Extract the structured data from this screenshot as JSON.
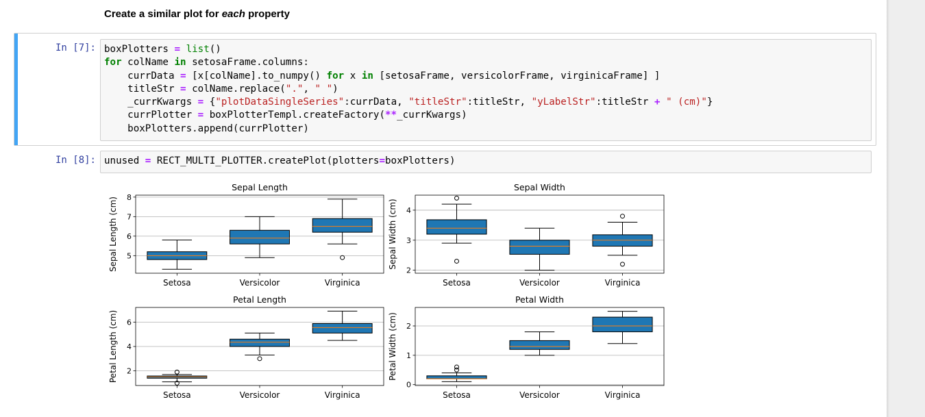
{
  "markdown": {
    "before": "Create a similar plot for ",
    "emph": "each",
    "after": " property"
  },
  "cell7": {
    "prompt": "In [7]:",
    "lines": [
      [
        [
          "boxPlotters ",
          ""
        ],
        [
          "=",
          "o"
        ],
        [
          " ",
          ""
        ],
        [
          "list",
          "b"
        ],
        [
          "()",
          "p"
        ]
      ],
      [
        [
          "for",
          "k"
        ],
        [
          " colName ",
          ""
        ],
        [
          "in",
          "k"
        ],
        [
          " setosaFrame.columns:",
          ""
        ]
      ],
      [
        [
          "    currData ",
          ""
        ],
        [
          "=",
          "o"
        ],
        [
          " [x[colName].to_numpy() ",
          ""
        ],
        [
          "for",
          "k"
        ],
        [
          " x ",
          ""
        ],
        [
          "in",
          "k"
        ],
        [
          " [setosaFrame, versicolorFrame, virginicaFrame] ]",
          ""
        ]
      ],
      [
        [
          "    titleStr ",
          ""
        ],
        [
          "=",
          "o"
        ],
        [
          " colName.replace(",
          ""
        ],
        [
          "\".\"",
          "s"
        ],
        [
          ", ",
          ""
        ],
        [
          "\" \"",
          "s"
        ],
        [
          ")",
          ""
        ]
      ],
      [
        [
          "    _currKwargs ",
          ""
        ],
        [
          "=",
          "o"
        ],
        [
          " {",
          ""
        ],
        [
          "\"plotDataSingleSeries\"",
          "s"
        ],
        [
          ":currData, ",
          ""
        ],
        [
          "\"titleStr\"",
          "s"
        ],
        [
          ":titleStr, ",
          ""
        ],
        [
          "\"yLabelStr\"",
          "s"
        ],
        [
          ":titleStr ",
          ""
        ],
        [
          "+",
          "o"
        ],
        [
          " ",
          ""
        ],
        [
          "\" (cm)\"",
          "s"
        ],
        [
          "}",
          ""
        ]
      ],
      [
        [
          "    currPlotter ",
          ""
        ],
        [
          "=",
          "o"
        ],
        [
          " boxPlotterTempl.createFactory(",
          ""
        ],
        [
          "**",
          "o"
        ],
        [
          "_currKwargs)",
          ""
        ]
      ],
      [
        [
          "    boxPlotters.append(currPlotter)",
          ""
        ]
      ]
    ]
  },
  "cell8": {
    "prompt": "In [8]:",
    "lines": [
      [
        [
          "unused ",
          ""
        ],
        [
          "=",
          "o"
        ],
        [
          " RECT_MULTI_PLOTTER.createPlot(plotters",
          ""
        ],
        [
          "=",
          "o"
        ],
        [
          "boxPlotters)",
          ""
        ]
      ]
    ]
  },
  "chart_data": [
    {
      "type": "box",
      "title": "Sepal Length",
      "ylabel": "Sepal Length (cm)",
      "categories": [
        "Setosa",
        "Versicolor",
        "Virginica"
      ],
      "ylim": [
        4.1,
        8.1
      ],
      "yticks": [
        5,
        6,
        7,
        8
      ],
      "boxes": [
        {
          "whislo": 4.3,
          "q1": 4.8,
          "med": 5.0,
          "q3": 5.2,
          "whishi": 5.8,
          "fliers": []
        },
        {
          "whislo": 4.9,
          "q1": 5.6,
          "med": 5.9,
          "q3": 6.3,
          "whishi": 7.0,
          "fliers": []
        },
        {
          "whislo": 5.6,
          "q1": 6.2,
          "med": 6.5,
          "q3": 6.9,
          "whishi": 7.9,
          "fliers": [
            4.9
          ]
        }
      ],
      "box_color": "#1f77b4",
      "median_color": "#ff7f0e",
      "grid": "horizontal"
    },
    {
      "type": "box",
      "title": "Sepal Width",
      "ylabel": "Sepal Width (cm)",
      "categories": [
        "Setosa",
        "Versicolor",
        "Virginica"
      ],
      "ylim": [
        1.9,
        4.5
      ],
      "yticks": [
        2,
        3,
        4
      ],
      "boxes": [
        {
          "whislo": 2.9,
          "q1": 3.2,
          "med": 3.4,
          "q3": 3.68,
          "whishi": 4.2,
          "fliers": [
            4.4,
            2.3
          ]
        },
        {
          "whislo": 2.0,
          "q1": 2.53,
          "med": 2.8,
          "q3": 3.0,
          "whishi": 3.4,
          "fliers": []
        },
        {
          "whislo": 2.5,
          "q1": 2.8,
          "med": 3.0,
          "q3": 3.18,
          "whishi": 3.6,
          "fliers": [
            3.8,
            2.2
          ]
        }
      ],
      "box_color": "#1f77b4",
      "median_color": "#ff7f0e",
      "grid": "horizontal"
    },
    {
      "type": "box",
      "title": "Petal Length",
      "ylabel": "Petal Length (cm)",
      "categories": [
        "Setosa",
        "Versicolor",
        "Virginica"
      ],
      "ylim": [
        0.8,
        7.2
      ],
      "yticks": [
        2,
        4,
        6
      ],
      "boxes": [
        {
          "whislo": 1.1,
          "q1": 1.4,
          "med": 1.5,
          "q3": 1.58,
          "whishi": 1.7,
          "fliers": [
            1.9,
            1.0
          ]
        },
        {
          "whislo": 3.3,
          "q1": 4.0,
          "med": 4.35,
          "q3": 4.6,
          "whishi": 5.1,
          "fliers": [
            3.0
          ]
        },
        {
          "whislo": 4.5,
          "q1": 5.1,
          "med": 5.55,
          "q3": 5.88,
          "whishi": 6.9,
          "fliers": []
        }
      ],
      "box_color": "#1f77b4",
      "median_color": "#ff7f0e",
      "grid": "horizontal"
    },
    {
      "type": "box",
      "title": "Petal Width",
      "ylabel": "Petal Width (cm)",
      "categories": [
        "Setosa",
        "Versicolor",
        "Virginica"
      ],
      "ylim": [
        -0.03,
        2.63
      ],
      "yticks": [
        0,
        1,
        2
      ],
      "boxes": [
        {
          "whislo": 0.1,
          "q1": 0.2,
          "med": 0.2,
          "q3": 0.3,
          "whishi": 0.4,
          "fliers": [
            0.5,
            0.6
          ]
        },
        {
          "whislo": 1.0,
          "q1": 1.2,
          "med": 1.3,
          "q3": 1.5,
          "whishi": 1.8,
          "fliers": []
        },
        {
          "whislo": 1.4,
          "q1": 1.8,
          "med": 2.0,
          "q3": 2.3,
          "whishi": 2.5,
          "fliers": []
        }
      ],
      "box_color": "#1f77b4",
      "median_color": "#ff7f0e",
      "grid": "horizontal"
    }
  ]
}
